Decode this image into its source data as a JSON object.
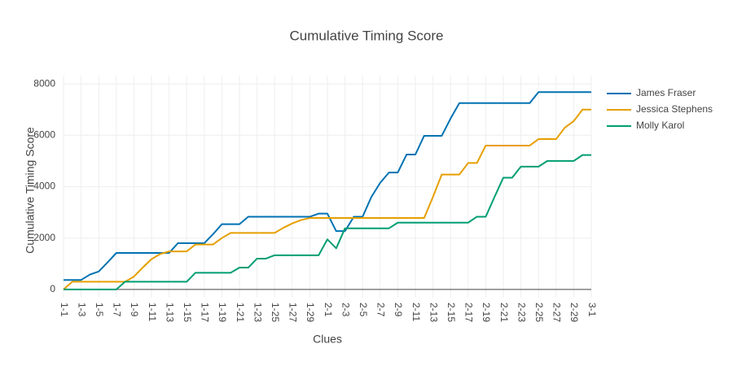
{
  "chart_data": {
    "type": "line",
    "title": "Cumulative Timing Score",
    "x_label": "Clues",
    "y_label": "Cumulative Timing Score",
    "categories": [
      "1-1",
      null,
      "1-3",
      null,
      "1-5",
      null,
      "1-7",
      null,
      "1-9",
      null,
      "1-11",
      null,
      "1-13",
      null,
      "1-15",
      null,
      "1-17",
      null,
      "1-19",
      null,
      "1-21",
      null,
      "1-23",
      null,
      "1-25",
      null,
      "1-27",
      null,
      "1-29",
      null,
      "2-1",
      null,
      "2-3",
      null,
      "2-5",
      null,
      "2-7",
      null,
      "2-9",
      null,
      "2-11",
      null,
      "2-13",
      null,
      "2-15",
      null,
      "2-17",
      null,
      "2-19",
      null,
      "2-21",
      null,
      "2-23",
      null,
      "2-25",
      null,
      "2-27",
      null,
      "2-29",
      null,
      "3-1"
    ],
    "series": [
      {
        "name": "James Fraser",
        "color": "#0072b2",
        "values": [
          370,
          370,
          370,
          580,
          700,
          1050,
          1420,
          1420,
          1420,
          1420,
          1420,
          1420,
          1420,
          1800,
          1800,
          1800,
          1800,
          2150,
          2540,
          2540,
          2540,
          2830,
          2830,
          2830,
          2830,
          2830,
          2830,
          2830,
          2830,
          2950,
          2950,
          2270,
          2270,
          2830,
          2830,
          3600,
          4150,
          4550,
          4550,
          5250,
          5250,
          5980,
          5980,
          5980,
          6650,
          7250,
          7250,
          7250,
          7250,
          7250,
          7250,
          7250,
          7250,
          7250,
          7680,
          7680,
          7680,
          7680,
          7680,
          7680,
          7680
        ]
      },
      {
        "name": "Jessica Stephens",
        "color": "#e69f00",
        "values": [
          0,
          300,
          300,
          300,
          300,
          300,
          300,
          300,
          500,
          850,
          1180,
          1380,
          1480,
          1480,
          1480,
          1750,
          1750,
          1750,
          2000,
          2200,
          2200,
          2200,
          2200,
          2200,
          2200,
          2400,
          2570,
          2700,
          2780,
          2780,
          2780,
          2780,
          2780,
          2780,
          2780,
          2780,
          2780,
          2780,
          2780,
          2780,
          2780,
          2780,
          3600,
          4470,
          4470,
          4470,
          4920,
          4920,
          5600,
          5600,
          5600,
          5600,
          5600,
          5600,
          5850,
          5850,
          5850,
          6300,
          6550,
          7000,
          7000
        ]
      },
      {
        "name": "Molly Karol",
        "color": "#009e73",
        "values": [
          0,
          0,
          0,
          0,
          0,
          0,
          0,
          300,
          300,
          300,
          300,
          300,
          300,
          300,
          300,
          650,
          650,
          650,
          650,
          650,
          850,
          850,
          1200,
          1200,
          1330,
          1330,
          1330,
          1330,
          1330,
          1330,
          1950,
          1600,
          2380,
          2380,
          2380,
          2380,
          2380,
          2380,
          2600,
          2600,
          2600,
          2600,
          2600,
          2600,
          2600,
          2600,
          2600,
          2830,
          2830,
          3600,
          4350,
          4350,
          4780,
          4780,
          4780,
          5000,
          5000,
          5000,
          5000,
          5230,
          5230
        ]
      }
    ],
    "ylim": [
      -320,
      8320
    ],
    "yticks": [
      0,
      2000,
      4000,
      6000,
      8000
    ],
    "grid": true,
    "legend": "right"
  }
}
